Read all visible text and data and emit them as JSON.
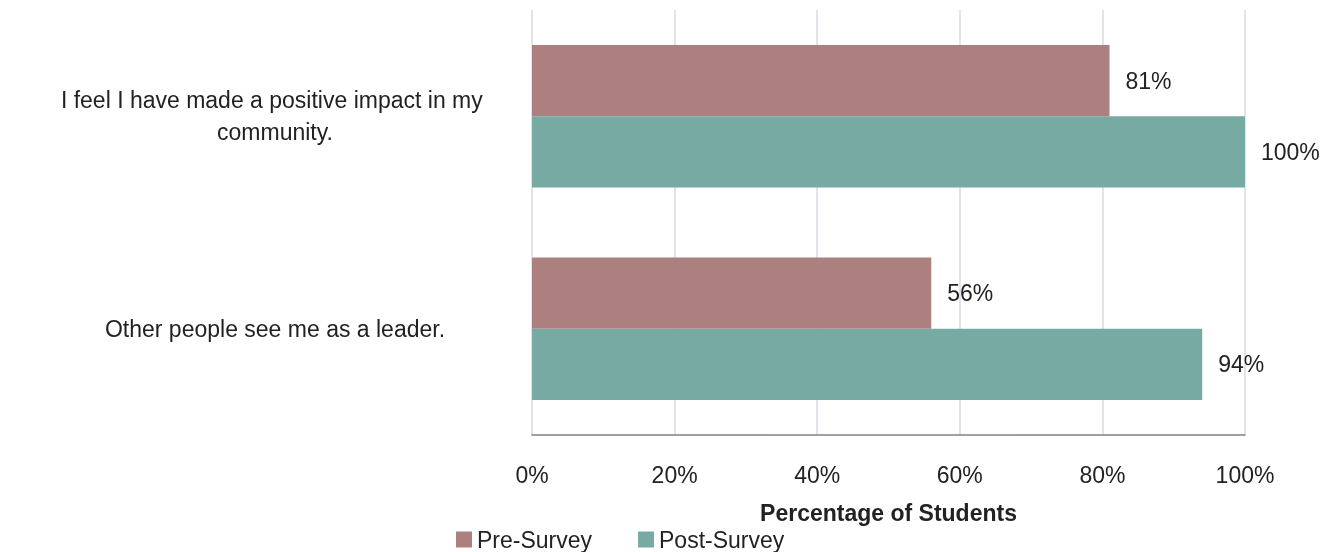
{
  "chart_data": {
    "type": "bar",
    "orientation": "horizontal",
    "xlabel": "Percentage of Students",
    "categories": [
      "I feel I have made a positive impact in my community.",
      "Other people see me as a leader."
    ],
    "series": [
      {
        "name": "Pre-Survey",
        "color": "#ad8080",
        "values": [
          81,
          56
        ],
        "value_labels": [
          "81%",
          "56%"
        ]
      },
      {
        "name": "Post-Survey",
        "color": "#78aaa4",
        "values": [
          100,
          94
        ],
        "value_labels": [
          "100%",
          "94%"
        ]
      }
    ],
    "xlim": [
      0,
      100
    ],
    "xticks": [
      {
        "value": 0,
        "label": "0%"
      },
      {
        "value": 20,
        "label": "20%"
      },
      {
        "value": 40,
        "label": "40%"
      },
      {
        "value": 60,
        "label": "60%"
      },
      {
        "value": 80,
        "label": "80%"
      },
      {
        "value": 100,
        "label": "100%"
      }
    ],
    "grid": "x",
    "legend": "bottom"
  }
}
